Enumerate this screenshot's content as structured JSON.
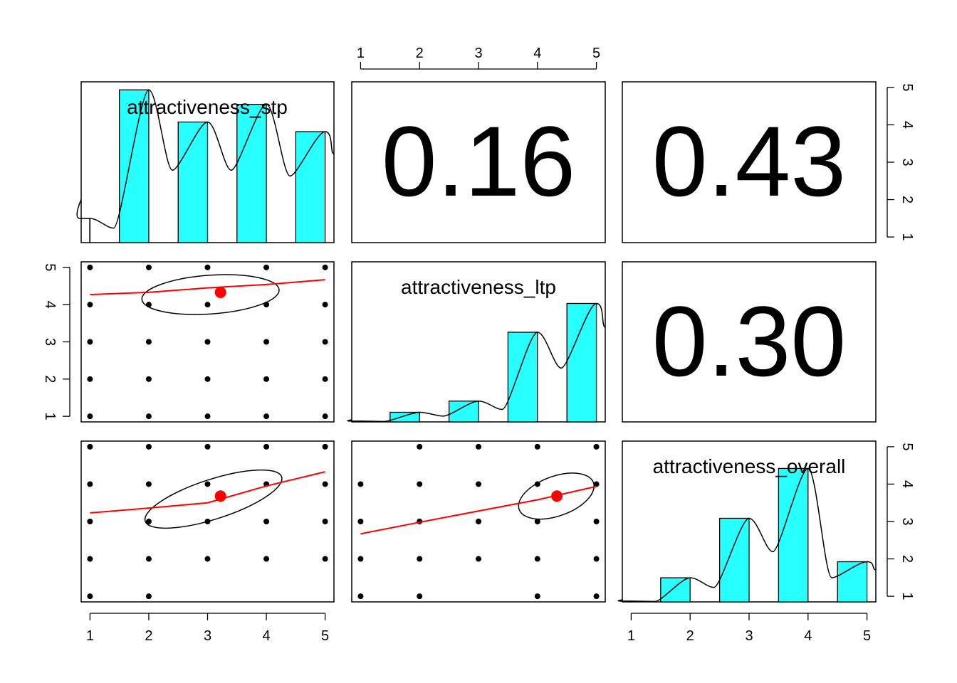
{
  "colors": {
    "histogram_fill": "#28FFFF",
    "points": "#000000",
    "fit_line": "#FF0000",
    "mean_point": "#FF0000",
    "ellipse": "#000000"
  },
  "chart_data": {
    "type": "scatter-matrix",
    "variables": [
      "attractiveness_stp",
      "attractiveness_ltp",
      "attractiveness_overall"
    ],
    "tick_labels": [
      "1",
      "2",
      "3",
      "4",
      "5"
    ],
    "axis_range": [
      0.85,
      5.15
    ],
    "correlations": [
      {
        "row": 1,
        "col": 2,
        "vars": [
          "attractiveness_stp",
          "attractiveness_ltp"
        ],
        "label": "0.16"
      },
      {
        "row": 1,
        "col": 3,
        "vars": [
          "attractiveness_stp",
          "attractiveness_overall"
        ],
        "label": "0.43"
      },
      {
        "row": 2,
        "col": 3,
        "vars": [
          "attractiveness_ltp",
          "attractiveness_overall"
        ],
        "label": "0.30"
      }
    ],
    "histograms": [
      {
        "variable": "attractiveness_stp",
        "bins": [
          [
            1.5,
            2
          ],
          [
            2.5,
            3
          ],
          [
            3.5,
            4
          ],
          [
            4.5,
            5
          ]
        ],
        "first_bin": [
          1,
          1.5
        ],
        "values": [
          0.15,
          0.95,
          0.75,
          0.86,
          0.69
        ]
      },
      {
        "variable": "attractiveness_ltp",
        "first_bin": [
          1,
          1.5
        ],
        "values": [
          0.005,
          0.06,
          0.13,
          0.56,
          0.74
        ]
      },
      {
        "variable": "attractiveness_overall",
        "first_bin": [
          1,
          1.5
        ],
        "values": [
          0.005,
          0.15,
          0.52,
          0.83,
          0.25
        ]
      }
    ],
    "scatter_panels": [
      {
        "row": 2,
        "col": 1,
        "x": "attractiveness_stp",
        "y": "attractiveness_ltp",
        "points": [
          [
            1,
            5
          ],
          [
            2,
            5
          ],
          [
            3,
            5
          ],
          [
            4,
            5
          ],
          [
            5,
            5
          ],
          [
            1,
            4
          ],
          [
            2,
            4
          ],
          [
            3,
            4
          ],
          [
            4,
            4
          ],
          [
            5,
            4
          ],
          [
            1,
            3
          ],
          [
            2,
            3
          ],
          [
            3,
            3
          ],
          [
            4,
            3
          ],
          [
            5,
            3
          ],
          [
            1,
            2
          ],
          [
            2,
            2
          ],
          [
            3,
            2
          ],
          [
            4,
            2
          ],
          [
            5,
            2
          ],
          [
            1,
            1
          ],
          [
            2,
            1
          ],
          [
            3,
            1
          ],
          [
            4,
            1
          ],
          [
            5,
            1
          ]
        ],
        "mean": [
          3.22,
          4.33
        ],
        "fit": [
          [
            1,
            4.27
          ],
          [
            2,
            4.33
          ],
          [
            3,
            4.45
          ],
          [
            4,
            4.54
          ],
          [
            5,
            4.67
          ]
        ],
        "ellipse": {
          "cx": 3.05,
          "cy": 4.27,
          "rx": 1.17,
          "ry": 0.52,
          "angle_deg": -4
        }
      },
      {
        "row": 3,
        "col": 1,
        "x": "attractiveness_stp",
        "y": "attractiveness_overall",
        "points": [
          [
            1,
            5
          ],
          [
            2,
            5
          ],
          [
            3,
            5
          ],
          [
            4,
            5
          ],
          [
            5,
            5
          ],
          [
            1,
            4
          ],
          [
            2,
            4
          ],
          [
            3,
            4
          ],
          [
            4,
            4
          ],
          [
            5,
            4
          ],
          [
            1,
            3
          ],
          [
            2,
            3
          ],
          [
            3,
            3
          ],
          [
            4,
            3
          ],
          [
            5,
            3
          ],
          [
            1,
            2
          ],
          [
            2,
            2
          ],
          [
            3,
            2
          ],
          [
            4,
            2
          ],
          [
            5,
            2
          ],
          [
            1,
            1
          ],
          [
            2,
            1
          ]
        ],
        "mean": [
          3.22,
          3.68
        ],
        "fit": [
          [
            1,
            3.23
          ],
          [
            2,
            3.36
          ],
          [
            3,
            3.5
          ],
          [
            4,
            3.95
          ],
          [
            5,
            4.33
          ]
        ],
        "ellipse": {
          "cx": 3.1,
          "cy": 3.6,
          "rx": 1.22,
          "ry": 0.53,
          "angle_deg": -18
        }
      },
      {
        "row": 3,
        "col": 2,
        "x": "attractiveness_ltp",
        "y": "attractiveness_overall",
        "points": [
          [
            2,
            5
          ],
          [
            3,
            5
          ],
          [
            4,
            5
          ],
          [
            5,
            5
          ],
          [
            1,
            4
          ],
          [
            2,
            4
          ],
          [
            3,
            4
          ],
          [
            4,
            4
          ],
          [
            5,
            4
          ],
          [
            1,
            3
          ],
          [
            2,
            3
          ],
          [
            3,
            3
          ],
          [
            4,
            3
          ],
          [
            5,
            3
          ],
          [
            1,
            2
          ],
          [
            2,
            2
          ],
          [
            3,
            2
          ],
          [
            4,
            2
          ],
          [
            5,
            2
          ],
          [
            1,
            1
          ],
          [
            2,
            1
          ],
          [
            4,
            1
          ],
          [
            5,
            1
          ]
        ],
        "mean": [
          4.33,
          3.68
        ],
        "fit": [
          [
            1,
            2.67
          ],
          [
            2,
            2.98
          ],
          [
            3,
            3.28
          ],
          [
            4,
            3.58
          ],
          [
            5,
            3.94
          ]
        ],
        "ellipse": {
          "cx": 4.32,
          "cy": 3.68,
          "rx": 0.67,
          "ry": 0.53,
          "angle_deg": -20
        }
      }
    ]
  }
}
